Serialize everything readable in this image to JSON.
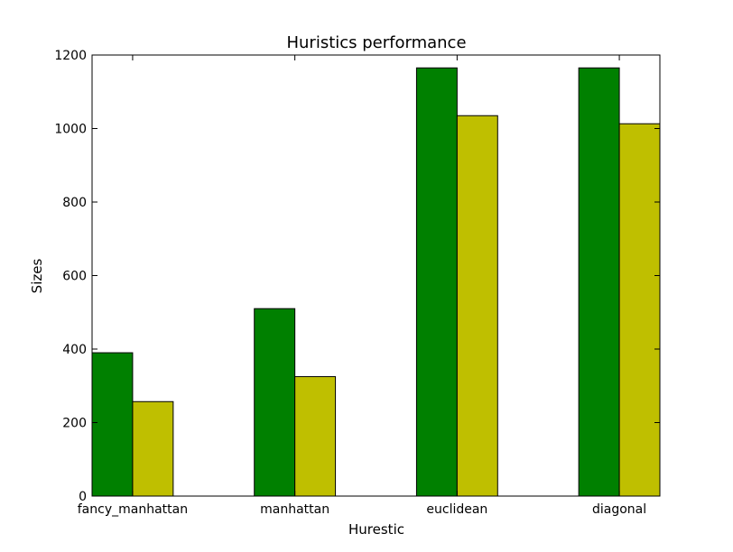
{
  "chart_data": {
    "type": "bar",
    "title": "Huristics performance",
    "xlabel": "Hurestic",
    "ylabel": "Sizes",
    "ylim": [
      0,
      1200
    ],
    "yticks": [
      0,
      200,
      400,
      600,
      800,
      1000,
      1200
    ],
    "grid": false,
    "categories": [
      "fancy_manhattan",
      "manhattan",
      "euclidean",
      "diagonal"
    ],
    "series": [
      {
        "color": "#008000",
        "values": [
          390,
          510,
          1165,
          1165
        ]
      },
      {
        "color": "#bfbf00",
        "values": [
          257,
          325,
          1035,
          1013
        ]
      }
    ]
  }
}
